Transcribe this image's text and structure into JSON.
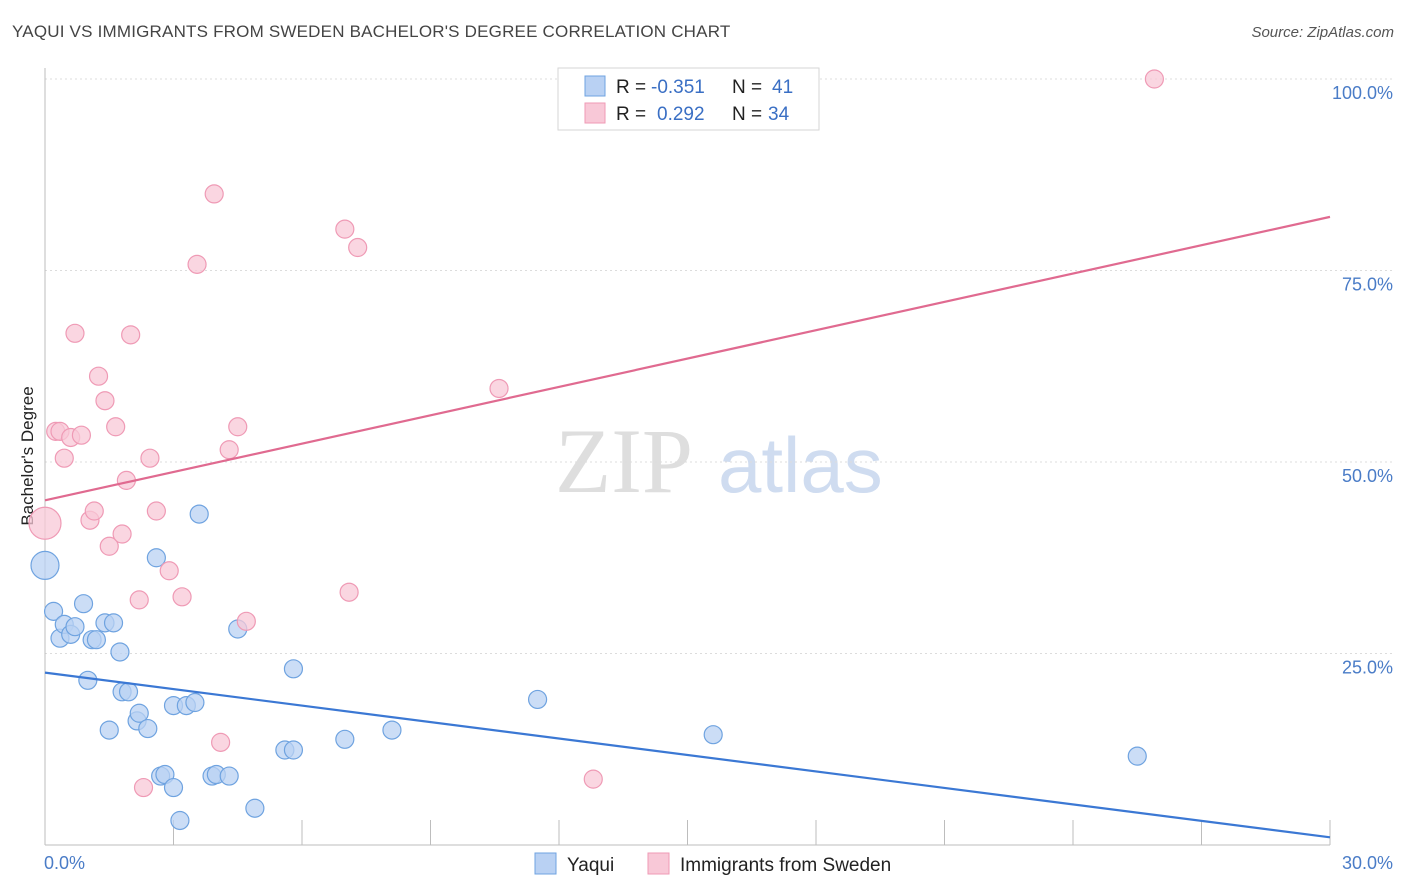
{
  "title": "YAQUI VS IMMIGRANTS FROM SWEDEN BACHELOR'S DEGREE CORRELATION CHART",
  "source": "Source: ZipAtlas.com",
  "watermark": {
    "zip": "ZIP",
    "atlas": "atlas"
  },
  "chart_data": {
    "type": "scatter",
    "title": "YAQUI VS IMMIGRANTS FROM SWEDEN BACHELOR'S DEGREE CORRELATION CHART",
    "xlabel": "",
    "ylabel": "Bachelor's Degree",
    "xlim": [
      0,
      30
    ],
    "ylim": [
      0,
      100
    ],
    "x_tick_labels": {
      "min": "0.0%",
      "max": "30.0%"
    },
    "y_ticks": [
      25,
      50,
      75,
      100
    ],
    "y_tick_labels": [
      "25.0%",
      "50.0%",
      "75.0%",
      "100.0%"
    ],
    "legend": {
      "entries": [
        {
          "r_label": "R = ",
          "r_value": "-0.351",
          "n_label": "N = ",
          "n_value": "41"
        },
        {
          "r_label": "R = ",
          "r_value": "0.292",
          "n_label": "N = ",
          "n_value": "34"
        }
      ]
    },
    "series": [
      {
        "name": "Yaqui",
        "color": "#6fa3e0",
        "fill": "#b9d1f3",
        "line_color": "#3b78d4",
        "trend": {
          "x0": 0,
          "y0": 22.5,
          "x1": 30,
          "y1": 1.0
        },
        "points": [
          [
            0.0,
            36.5,
            14
          ],
          [
            0.2,
            30.5,
            9
          ],
          [
            0.35,
            27.0,
            9
          ],
          [
            0.45,
            28.8,
            9
          ],
          [
            0.6,
            27.5,
            9
          ],
          [
            0.7,
            28.5,
            9
          ],
          [
            0.9,
            31.5,
            9
          ],
          [
            1.0,
            21.5,
            9
          ],
          [
            1.1,
            26.8,
            9
          ],
          [
            1.2,
            26.8,
            9
          ],
          [
            1.4,
            29.0,
            9
          ],
          [
            1.5,
            15.0,
            9
          ],
          [
            1.6,
            29.0,
            9
          ],
          [
            1.75,
            25.2,
            9
          ],
          [
            1.8,
            20.0,
            9
          ],
          [
            1.95,
            20.0,
            9
          ],
          [
            2.15,
            16.2,
            9
          ],
          [
            2.2,
            17.2,
            9
          ],
          [
            2.4,
            15.2,
            9
          ],
          [
            2.6,
            37.5,
            9
          ],
          [
            2.7,
            9.0,
            9
          ],
          [
            2.8,
            9.2,
            9
          ],
          [
            3.0,
            18.2,
            9
          ],
          [
            3.0,
            7.5,
            9
          ],
          [
            3.15,
            3.2,
            9
          ],
          [
            3.3,
            18.2,
            9
          ],
          [
            3.5,
            18.6,
            9
          ],
          [
            3.6,
            43.2,
            9
          ],
          [
            3.9,
            9.0,
            9
          ],
          [
            4.0,
            9.2,
            9
          ],
          [
            4.3,
            9.0,
            9
          ],
          [
            4.5,
            28.2,
            9
          ],
          [
            4.9,
            4.8,
            9
          ],
          [
            5.6,
            12.4,
            9
          ],
          [
            5.8,
            12.4,
            9
          ],
          [
            5.8,
            23.0,
            9
          ],
          [
            7.0,
            13.8,
            9
          ],
          [
            8.1,
            15.0,
            9
          ],
          [
            11.5,
            19.0,
            9
          ],
          [
            15.6,
            14.4,
            9
          ],
          [
            25.5,
            11.6,
            9
          ]
        ]
      },
      {
        "name": "Immigrants from Sweden",
        "color": "#ef9ab5",
        "fill": "#f8c8d7",
        "line_color": "#e06a90",
        "trend": {
          "x0": 0,
          "y0": 45.0,
          "x1": 30,
          "y1": 82.0
        },
        "points": [
          [
            0.0,
            42.0,
            16
          ],
          [
            0.25,
            54.0,
            9
          ],
          [
            0.35,
            54.0,
            9
          ],
          [
            0.45,
            50.5,
            9
          ],
          [
            0.6,
            53.2,
            9
          ],
          [
            0.7,
            66.8,
            9
          ],
          [
            0.85,
            53.5,
            9
          ],
          [
            1.05,
            42.4,
            9
          ],
          [
            1.15,
            43.6,
            9
          ],
          [
            1.25,
            61.2,
            9
          ],
          [
            1.4,
            58.0,
            9
          ],
          [
            1.5,
            39.0,
            9
          ],
          [
            1.65,
            54.6,
            9
          ],
          [
            1.8,
            40.6,
            9
          ],
          [
            1.9,
            47.6,
            9
          ],
          [
            2.0,
            66.6,
            9
          ],
          [
            2.2,
            32.0,
            9
          ],
          [
            2.3,
            7.5,
            9
          ],
          [
            2.45,
            50.5,
            9
          ],
          [
            2.6,
            43.6,
            9
          ],
          [
            2.9,
            35.8,
            9
          ],
          [
            3.2,
            32.4,
            9
          ],
          [
            3.55,
            75.8,
            9
          ],
          [
            3.95,
            85.0,
            9
          ],
          [
            4.1,
            13.4,
            9
          ],
          [
            4.3,
            51.6,
            9
          ],
          [
            4.5,
            54.6,
            9
          ],
          [
            4.7,
            29.2,
            9
          ],
          [
            7.0,
            80.4,
            9
          ],
          [
            7.1,
            33.0,
            9
          ],
          [
            7.3,
            78.0,
            9
          ],
          [
            10.6,
            59.6,
            9
          ],
          [
            12.8,
            8.6,
            9
          ],
          [
            25.9,
            100.0,
            9
          ]
        ]
      }
    ]
  },
  "bottom_legend": [
    "Yaqui",
    "Immigrants from Sweden"
  ]
}
